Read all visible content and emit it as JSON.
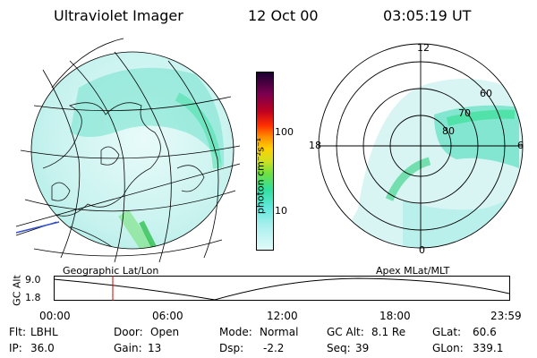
{
  "header": {
    "title": "Ultraviolet Imager",
    "date": "12 Oct 00",
    "time": "03:05:19 UT"
  },
  "colorbar": {
    "label": "photon cm⁻²s⁻¹",
    "ticks": [
      "100",
      "10"
    ]
  },
  "polar_plot": {
    "mlt_labels": {
      "top": "12",
      "left": "18",
      "right": "6",
      "bottom": "0"
    },
    "lat_labels": [
      "60",
      "70",
      "80"
    ]
  },
  "panel_labels": {
    "left": "Geographic Lat/Lon",
    "right": "Apex MLat/MLT"
  },
  "timeline": {
    "axis_label": "GC Alt",
    "y_ticks": [
      "9.0",
      "1.8"
    ],
    "x_ticks": [
      "00:00",
      "06:00",
      "12:00",
      "18:00",
      "23:59"
    ],
    "cursor_time": "03:05"
  },
  "status": {
    "flt_label": "Flt:",
    "flt_value": "LBHL",
    "ip_label": "IP:",
    "ip_value": "36.0",
    "door_label": "Door:",
    "door_value": "Open",
    "gain_label": "Gain:",
    "gain_value": "13",
    "mode_label": "Mode:",
    "mode_value": "Normal",
    "dsp_label": "Dsp:",
    "dsp_value": "-2.2",
    "gcalt_label": "GC Alt:",
    "gcalt_value": "8.1 Re",
    "seq_label": "Seq:",
    "seq_value": "39",
    "glat_label": "GLat:",
    "glat_value": "60.6",
    "glon_label": "GLon:",
    "glon_value": "339.1"
  },
  "colors": {
    "aurora_low": "#b8f0ec",
    "aurora_mid": "#40e0c8",
    "aurora_high": "#30d060",
    "cursor": "#d00000"
  }
}
